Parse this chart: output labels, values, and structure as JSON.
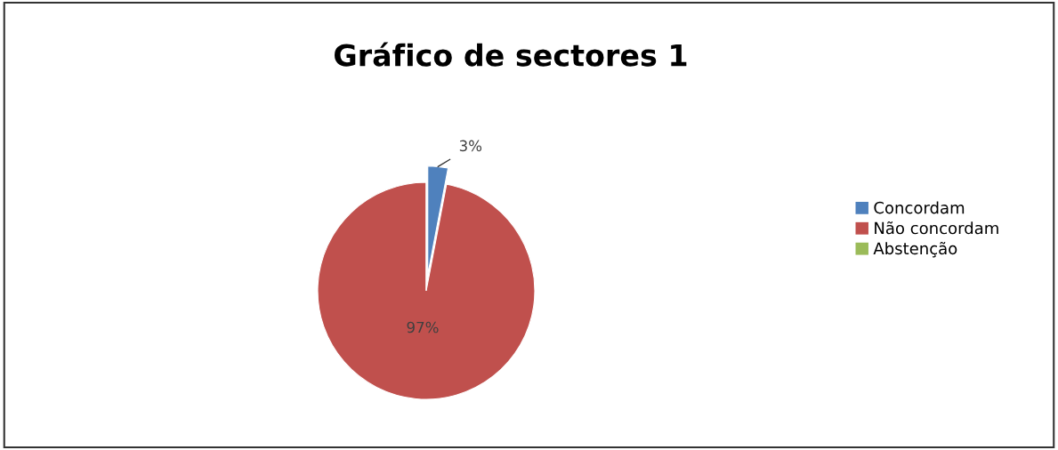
{
  "chart_data": {
    "type": "pie",
    "title": "Gráfico de sectores 1",
    "categories": [
      "Concordam",
      "Não concordam",
      "Abstenção"
    ],
    "values": [
      3,
      97,
      0
    ],
    "colors": [
      "#4f81bd",
      "#c0504d",
      "#9bbb59"
    ],
    "value_labels": [
      "3%",
      "97%",
      null
    ],
    "legend": "right"
  }
}
